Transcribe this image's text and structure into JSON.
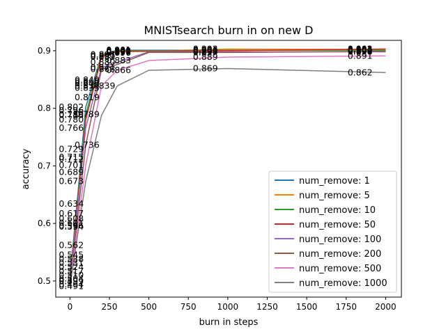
{
  "chart_data": {
    "type": "line",
    "title": "MNISTsearch burn in on new D",
    "xlabel": "burn in steps",
    "ylabel": "accuracy",
    "xlim": [
      -90,
      2100
    ],
    "ylim": [
      0.472,
      0.918
    ],
    "xticks": [
      0,
      250,
      500,
      750,
      1000,
      1250,
      1500,
      1750,
      2000
    ],
    "yticks": [
      0.5,
      0.6,
      0.7,
      0.8,
      0.9
    ],
    "grid": false,
    "legend_position": "lower-right",
    "x": [
      0,
      100,
      200,
      300,
      500,
      1000,
      2000
    ],
    "series": [
      {
        "name": "num_remove: 1",
        "color": "#1f77b4",
        "values": [
          0.5,
          0.802,
          0.893,
          0.901,
          0.901,
          0.901,
          0.901
        ]
      },
      {
        "name": "num_remove: 5",
        "color": "#ff7f0e",
        "values": [
          0.504,
          0.788,
          0.893,
          0.898,
          0.899,
          0.903,
          0.902
        ]
      },
      {
        "name": "num_remove: 10",
        "color": "#2ca02c",
        "values": [
          0.508,
          0.789,
          0.891,
          0.9,
          0.9,
          0.901,
          0.901
        ]
      },
      {
        "name": "num_remove: 50",
        "color": "#d62728",
        "values": [
          0.502,
          0.78,
          0.889,
          0.899,
          0.899,
          0.9,
          0.903
        ]
      },
      {
        "name": "num_remove: 100",
        "color": "#9467bd",
        "values": [
          0.5,
          0.766,
          0.871,
          0.88,
          0.898,
          0.898,
          0.898
        ]
      },
      {
        "name": "num_remove: 200",
        "color": "#8c564b",
        "values": [
          0.496,
          0.736,
          0.868,
          0.876,
          0.897,
          0.897,
          0.899
        ]
      },
      {
        "name": "num_remove: 500",
        "color": "#e377c2",
        "values": [
          0.494,
          0.701,
          0.839,
          0.866,
          0.883,
          0.889,
          0.891
        ]
      },
      {
        "name": "num_remove: 1000",
        "color": "#7f7f7f",
        "values": [
          0.491,
          0.673,
          0.788,
          0.839,
          0.866,
          0.869,
          0.862
        ]
      }
    ],
    "annotations": [
      {
        "x": 0,
        "y": 0.634,
        "text": "0.634"
      },
      {
        "x": 0,
        "y": 0.617,
        "text": "0.617"
      },
      {
        "x": 0,
        "y": 0.608,
        "text": "0.608"
      },
      {
        "x": 0,
        "y": 0.601,
        "text": "0.601"
      },
      {
        "x": 0,
        "y": 0.596,
        "text": "0.596"
      },
      {
        "x": 0,
        "y": 0.594,
        "text": "0.594"
      },
      {
        "x": 0,
        "y": 0.562,
        "text": "0.562"
      },
      {
        "x": 0,
        "y": 0.545,
        "text": "0.545"
      },
      {
        "x": 0,
        "y": 0.538,
        "text": "0.538"
      },
      {
        "x": 0,
        "y": 0.531,
        "text": "0.531"
      },
      {
        "x": 0,
        "y": 0.524,
        "text": "0.524"
      },
      {
        "x": 0,
        "y": 0.517,
        "text": "0.517"
      },
      {
        "x": 0,
        "y": 0.51,
        "text": "0.510"
      },
      {
        "x": 0,
        "y": 0.504,
        "text": "0.504"
      },
      {
        "x": 0,
        "y": 0.499,
        "text": "0.499"
      },
      {
        "x": 0,
        "y": 0.494,
        "text": "0.494"
      },
      {
        "x": 0,
        "y": 0.491,
        "text": "0.491"
      },
      {
        "x": 0,
        "y": 0.5,
        "text": "0.5"
      },
      {
        "x": 0,
        "y": 0.729,
        "text": "0.729"
      },
      {
        "x": 0,
        "y": 0.715,
        "text": "0.715"
      },
      {
        "x": 0,
        "y": 0.712,
        "text": "0.712"
      },
      {
        "x": 0,
        "y": 0.701,
        "text": "0.701"
      },
      {
        "x": 0,
        "y": 0.689,
        "text": "0.689"
      },
      {
        "x": 0,
        "y": 0.673,
        "text": "0.673"
      },
      {
        "x": 100,
        "y": 0.736,
        "text": "0.736"
      },
      {
        "x": 0,
        "y": 0.802,
        "text": "0.802"
      },
      {
        "x": 0,
        "y": 0.796,
        "text": "0.796"
      },
      {
        "x": 0,
        "y": 0.789,
        "text": "0.789"
      },
      {
        "x": 0,
        "y": 0.788,
        "text": "0.788"
      },
      {
        "x": 0,
        "y": 0.78,
        "text": "0.780"
      },
      {
        "x": 0,
        "y": 0.766,
        "text": "0.766"
      },
      {
        "x": 100,
        "y": 0.789,
        "text": "0.789"
      },
      {
        "x": 100,
        "y": 0.849,
        "text": "0.849"
      },
      {
        "x": 100,
        "y": 0.846,
        "text": "0.846"
      },
      {
        "x": 100,
        "y": 0.843,
        "text": "0.843"
      },
      {
        "x": 100,
        "y": 0.839,
        "text": "0.839"
      },
      {
        "x": 100,
        "y": 0.835,
        "text": "0.835"
      },
      {
        "x": 100,
        "y": 0.819,
        "text": "0.819"
      },
      {
        "x": 200,
        "y": 0.839,
        "text": "0.839"
      },
      {
        "x": 200,
        "y": 0.893,
        "text": "0.893"
      },
      {
        "x": 200,
        "y": 0.891,
        "text": "0.891"
      },
      {
        "x": 200,
        "y": 0.889,
        "text": "0.889"
      },
      {
        "x": 200,
        "y": 0.88,
        "text": "0.880"
      },
      {
        "x": 200,
        "y": 0.871,
        "text": "0.871"
      },
      {
        "x": 200,
        "y": 0.868,
        "text": "0.868"
      },
      {
        "x": 300,
        "y": 0.901,
        "text": "0.901"
      },
      {
        "x": 300,
        "y": 0.9,
        "text": "0.900"
      },
      {
        "x": 300,
        "y": 0.899,
        "text": "0.899"
      },
      {
        "x": 300,
        "y": 0.898,
        "text": "0.898"
      },
      {
        "x": 300,
        "y": 0.897,
        "text": "0.897"
      },
      {
        "x": 300,
        "y": 0.896,
        "text": "0.896"
      },
      {
        "x": 300,
        "y": 0.883,
        "text": "0.883"
      },
      {
        "x": 300,
        "y": 0.866,
        "text": "0.866"
      },
      {
        "x": 850,
        "y": 0.903,
        "text": "0.903"
      },
      {
        "x": 850,
        "y": 0.901,
        "text": "0.901"
      },
      {
        "x": 850,
        "y": 0.9,
        "text": "0.900"
      },
      {
        "x": 850,
        "y": 0.898,
        "text": "0.898"
      },
      {
        "x": 850,
        "y": 0.897,
        "text": "0.897"
      },
      {
        "x": 850,
        "y": 0.889,
        "text": "0.889"
      },
      {
        "x": 850,
        "y": 0.869,
        "text": "0.869"
      },
      {
        "x": 1830,
        "y": 0.903,
        "text": "0.903"
      },
      {
        "x": 1830,
        "y": 0.902,
        "text": "0.902"
      },
      {
        "x": 1830,
        "y": 0.901,
        "text": "0.901"
      },
      {
        "x": 1830,
        "y": 0.9,
        "text": "0.900"
      },
      {
        "x": 1830,
        "y": 0.899,
        "text": "0.899"
      },
      {
        "x": 1830,
        "y": 0.898,
        "text": "0.898"
      },
      {
        "x": 1830,
        "y": 0.891,
        "text": "0.891"
      },
      {
        "x": 1830,
        "y": 0.862,
        "text": "0.862"
      }
    ]
  }
}
